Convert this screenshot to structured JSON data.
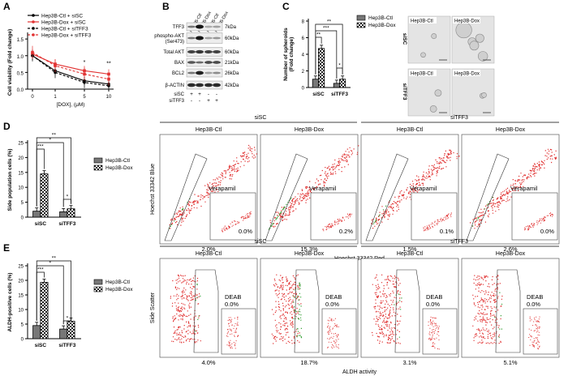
{
  "panels": {
    "A": {
      "letter": "A",
      "legend": [
        "Hep3B-Ctl + siSC",
        "Hep3B-Dox + siSC",
        "Hep3B-Ctl + siTFF3",
        "Hep3B-Dox + siTFF3"
      ],
      "sig": [
        "*",
        "**"
      ]
    },
    "B": {
      "letter": "B",
      "lanes": [
        "Hep3B-Ctl",
        "Hep3B-Dox",
        "Hep3B-Ctl",
        "Hep3B-Dox"
      ],
      "bands": [
        {
          "name": "TFF3",
          "size": "7kDa"
        },
        {
          "name": "phospho-AKT (Ser473)",
          "size": "60kDa"
        },
        {
          "name": "Total AKT",
          "size": "60kDa"
        },
        {
          "name": "BAX",
          "size": "21kDa"
        },
        {
          "name": "BCL2",
          "size": "26kDa"
        },
        {
          "name": "β-ACTIN",
          "size": "42kDa"
        }
      ],
      "rows": [
        {
          "label": "siSC",
          "signs": [
            "+",
            "+",
            "-",
            "-"
          ]
        },
        {
          "label": "siTFF3",
          "signs": [
            "-",
            "-",
            "+",
            "+"
          ]
        }
      ]
    },
    "C": {
      "letter": "C",
      "sig": [
        "**",
        "***",
        "**",
        "*"
      ],
      "legend": [
        "Hep3B-Ctl",
        "Hep3B-Dox"
      ],
      "image_rows": [
        "siSC",
        "siTFF3"
      ],
      "image_labels": [
        "Hep3B-Ctl",
        "Hep3B-Dox",
        "Hep3B-Ctl",
        "Hep3B-Dox"
      ]
    },
    "D": {
      "letter": "D",
      "sig": [
        "***",
        "*",
        "**",
        "*"
      ],
      "legend": [
        "Hep3B-Ctl",
        "Hep3B-Dox"
      ],
      "flow": {
        "groups": [
          "siSC",
          "siTFF3"
        ],
        "subs": [
          "Hep3B-Ctl",
          "Hep3B-Dox",
          "Hep3B-Ctl",
          "Hep3B-Dox"
        ],
        "inset_label": "Verapamil",
        "inset_pcts": [
          "0.0%",
          "0.2%",
          "0.1%",
          "0.0%"
        ],
        "pcts": [
          "2.0%",
          "15.3%",
          "1.5%",
          "2.6%"
        ],
        "ylabel": "Hoechst 33342 Blue",
        "xlabel": "Hoechst 33342 Red"
      }
    },
    "E": {
      "letter": "E",
      "sig": [
        "***",
        "*",
        "**",
        "*"
      ],
      "legend": [
        "Hep3B-Ctl",
        "Hep3B-Dox"
      ],
      "flow": {
        "groups": [
          "siSC",
          "siTFF3"
        ],
        "subs": [
          "Hep3B-Ctl",
          "Hep3B-Dox",
          "Hep3B-Ctl",
          "Hep3B-Dox"
        ],
        "inset_label": "DEAB",
        "inset_pcts": [
          "0.0%",
          "0.0%",
          "0.0%",
          "0.0%"
        ],
        "pcts": [
          "4.0%",
          "18.7%",
          "3.1%",
          "5.1%"
        ],
        "ylabel": "Side Scatter",
        "xlabel": "ALDH activity"
      }
    }
  },
  "chart_data": [
    {
      "type": "line",
      "panel": "A",
      "title": "",
      "xlabel": "[DOX], (μM)",
      "ylabel": "Cell viability (Fold change)",
      "x": [
        0,
        1,
        5,
        10
      ],
      "x_ticks": [
        "0",
        "1",
        "5",
        "10"
      ],
      "y_ticks": [
        "0.0",
        "0.5",
        "1.0",
        "1.5"
      ],
      "ylim": [
        0,
        1.6
      ],
      "series": [
        {
          "name": "Hep3B-Ctl + siSC",
          "values": [
            1.0,
            0.55,
            0.25,
            0.15
          ],
          "color": "#000000",
          "dash": false
        },
        {
          "name": "Hep3B-Dox + siSC",
          "values": [
            1.05,
            0.75,
            0.55,
            0.45
          ],
          "color": "#e23333",
          "dash": false
        },
        {
          "name": "Hep3B-Ctl + siTFF3",
          "values": [
            1.0,
            0.5,
            0.2,
            0.1
          ],
          "color": "#000000",
          "dash": true
        },
        {
          "name": "Hep3B-Dox + siTFF3",
          "values": [
            1.1,
            0.7,
            0.45,
            0.3
          ],
          "color": "#e23333",
          "dash": true
        }
      ]
    },
    {
      "type": "bar",
      "panel": "C",
      "ylabel": "Number of spheroids (Fold change)",
      "categories": [
        "siSC",
        "siTFF3"
      ],
      "y_ticks": [
        "0",
        "2",
        "4",
        "6",
        "8"
      ],
      "ylim": [
        0,
        8
      ],
      "series": [
        {
          "name": "Hep3B-Ctl",
          "values": [
            1.0,
            0.5
          ]
        },
        {
          "name": "Hep3B-Dox",
          "values": [
            4.7,
            1.0
          ]
        }
      ]
    },
    {
      "type": "bar",
      "panel": "D",
      "ylabel": "Side population cells (%)",
      "categories": [
        "siSC",
        "siTFF3"
      ],
      "y_ticks": [
        "0",
        "5",
        "10",
        "15",
        "20",
        "25"
      ],
      "ylim": [
        0,
        25
      ],
      "series": [
        {
          "name": "Hep3B-Ctl",
          "values": [
            2.0,
            1.8
          ]
        },
        {
          "name": "Hep3B-Dox",
          "values": [
            14.5,
            2.8
          ]
        }
      ]
    },
    {
      "type": "bar",
      "panel": "E",
      "ylabel": "ALDH-positive cells (%)",
      "categories": [
        "siSC",
        "siTFF3"
      ],
      "y_ticks": [
        "0",
        "5",
        "10",
        "15",
        "20",
        "25"
      ],
      "ylim": [
        0,
        25
      ],
      "series": [
        {
          "name": "Hep3B-Ctl",
          "values": [
            4.5,
            3.3
          ]
        },
        {
          "name": "Hep3B-Dox",
          "values": [
            19.3,
            6.0
          ]
        }
      ]
    }
  ]
}
